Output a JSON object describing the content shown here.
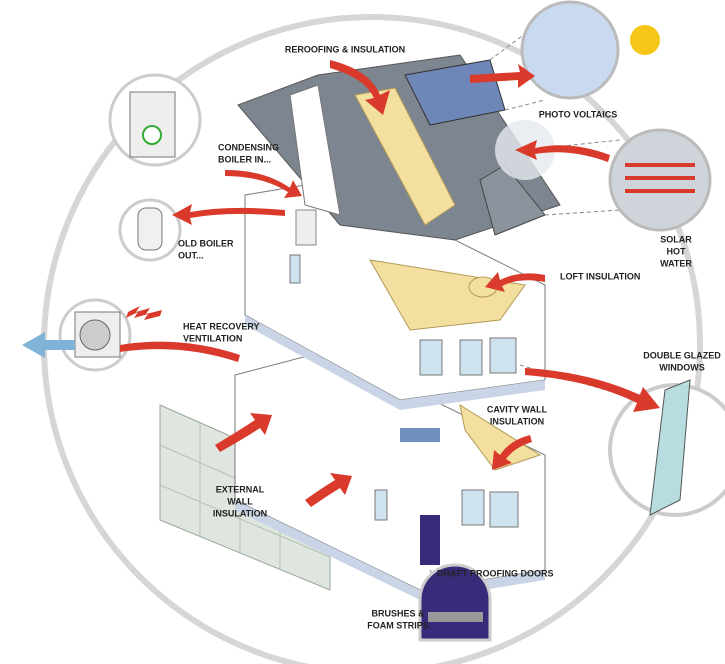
{
  "labels": [
    {
      "lines": [
        "REROOFING & INSULATION"
      ]
    },
    {
      "lines": [
        "PHOTO VOLTAICS"
      ]
    },
    {
      "lines": [
        "CONDENSING",
        "BOILER IN..."
      ]
    },
    {
      "lines": [
        "OLD BOILER",
        "OUT..."
      ]
    },
    {
      "lines": [
        "SOLAR",
        "HOT",
        "WATER"
      ]
    },
    {
      "lines": [
        "LOFT INSULATION"
      ]
    },
    {
      "lines": [
        "HEAT RECOVERY",
        "VENTILATION"
      ]
    },
    {
      "lines": [
        "DOUBLE GLAZED",
        "WINDOWS"
      ]
    },
    {
      "lines": [
        "CAVITY WALL",
        "INSULATION"
      ]
    },
    {
      "lines": [
        "EXTERNAL",
        "WALL",
        "INSULATION"
      ]
    },
    {
      "lines": [
        "DRAFT PROOFING DOORS"
      ]
    },
    {
      "lines": [
        "BRUSHES &",
        "FOAM STRIPS"
      ]
    }
  ]
}
